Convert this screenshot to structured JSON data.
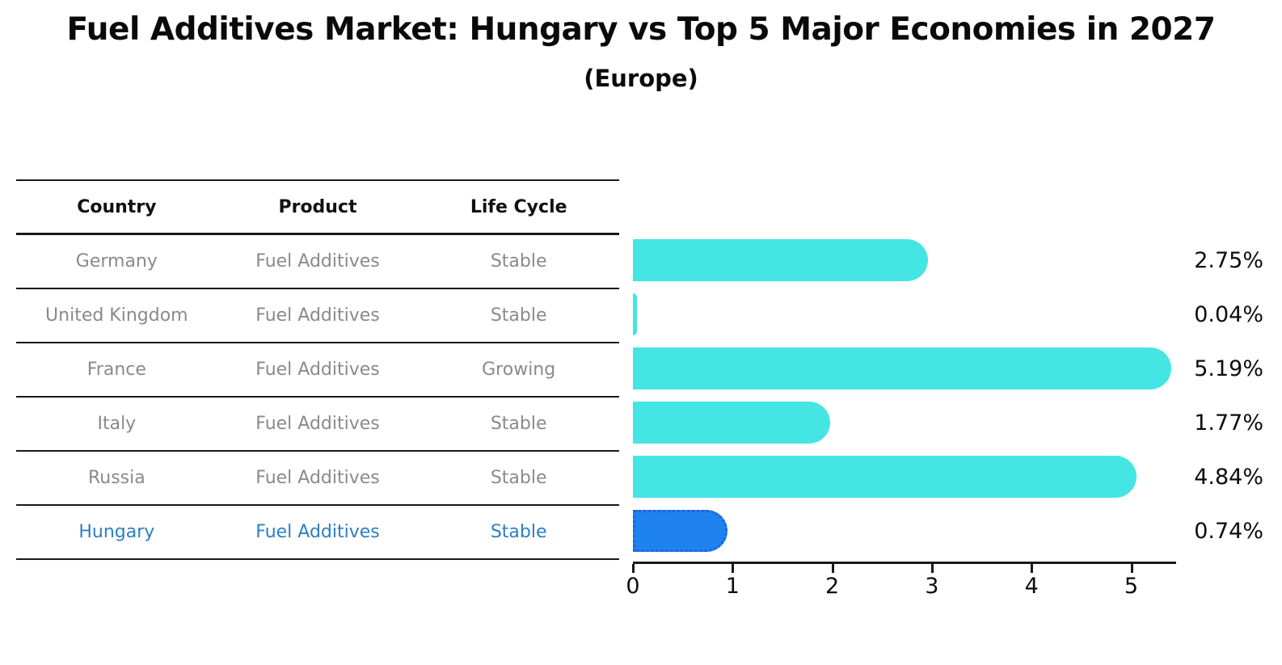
{
  "title": "Fuel Additives Market: Hungary vs Top 5 Major Economies in 2027",
  "subtitle": "(Europe)",
  "table": {
    "columns": [
      "Country",
      "Product",
      "Life Cycle"
    ]
  },
  "chart_data": {
    "type": "bar",
    "orientation": "horizontal",
    "title": "Fuel Additives Market: Hungary vs Top 5 Major Economies in 2027",
    "subtitle": "(Europe)",
    "categories": [
      "Germany",
      "United Kingdom",
      "France",
      "Italy",
      "Russia",
      "Hungary"
    ],
    "values": [
      2.75,
      0.04,
      5.19,
      1.77,
      4.84,
      0.74
    ],
    "value_labels": [
      "2.75%",
      "0.04%",
      "5.19%",
      "1.77%",
      "4.84%",
      "0.74%"
    ],
    "rows": [
      {
        "country": "Germany",
        "product": "Fuel Additives",
        "life_cycle": "Stable",
        "value": 2.75,
        "label": "2.75%",
        "highlighted": false
      },
      {
        "country": "United Kingdom",
        "product": "Fuel Additives",
        "life_cycle": "Stable",
        "value": 0.04,
        "label": "0.04%",
        "highlighted": false
      },
      {
        "country": "France",
        "product": "Fuel Additives",
        "life_cycle": "Growing",
        "value": 5.19,
        "label": "5.19%",
        "highlighted": false
      },
      {
        "country": "Italy",
        "product": "Fuel Additives",
        "life_cycle": "Stable",
        "value": 1.77,
        "label": "1.77%",
        "highlighted": false
      },
      {
        "country": "Russia",
        "product": "Fuel Additives",
        "life_cycle": "Stable",
        "value": 4.84,
        "label": "4.84%",
        "highlighted": false
      },
      {
        "country": "Hungary",
        "product": "Fuel Additives",
        "life_cycle": "Stable",
        "value": 0.74,
        "label": "0.74%",
        "highlighted": true
      }
    ],
    "x_ticks": [
      "0",
      "1",
      "2",
      "3",
      "4",
      "5"
    ],
    "xlim": [
      0,
      5.45
    ],
    "grid": false,
    "legend": "none",
    "colors": {
      "bar": "#45e5e3",
      "highlight_bar_fill": "#1e82f0",
      "highlight_bar_border": "#2263d6",
      "highlight_text": "#2b7fc4",
      "table_text": "#8a8a8a",
      "header_text": "#111111",
      "axis": "#1a1a1a"
    }
  }
}
